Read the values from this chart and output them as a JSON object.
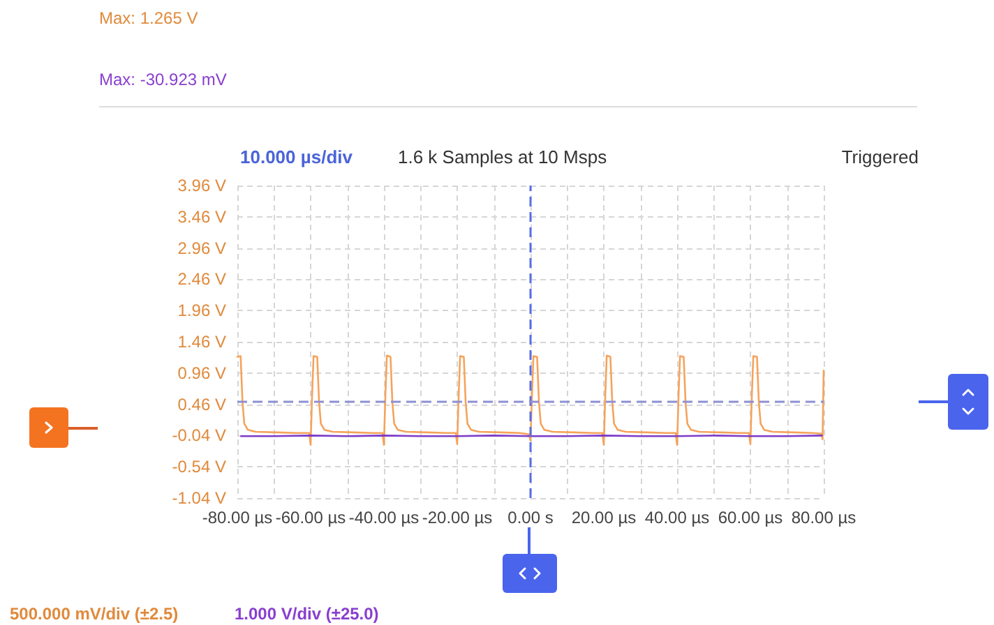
{
  "chart_data": {
    "type": "line",
    "xlim": [
      -80,
      80
    ],
    "xticks": [
      {
        "value": -80,
        "label": "-80.00 µs"
      },
      {
        "value": -70,
        "label": null
      },
      {
        "value": -60,
        "label": "-60.00 µs"
      },
      {
        "value": -50,
        "label": null
      },
      {
        "value": -40,
        "label": "-40.00 µs"
      },
      {
        "value": -30,
        "label": null
      },
      {
        "value": -20,
        "label": "-20.00 µs"
      },
      {
        "value": -10,
        "label": null
      },
      {
        "value": 0,
        "label": "0.00 s"
      },
      {
        "value": 10,
        "label": null
      },
      {
        "value": 20,
        "label": "20.00 µs"
      },
      {
        "value": 30,
        "label": null
      },
      {
        "value": 40,
        "label": "40.00 µs"
      },
      {
        "value": 50,
        "label": null
      },
      {
        "value": 60,
        "label": "60.00 µs"
      },
      {
        "value": 70,
        "label": null
      },
      {
        "value": 80,
        "label": "80.00 µs"
      }
    ],
    "ylim": [
      -1.04,
      3.96
    ],
    "yticks": [
      {
        "value": -1.04,
        "label": "-1.04 V"
      },
      {
        "value": -0.54,
        "label": "-0.54 V"
      },
      {
        "value": -0.04,
        "label": "-0.04 V"
      },
      {
        "value": 0.46,
        "label": "0.46 V"
      },
      {
        "value": 0.96,
        "label": "0.96 V"
      },
      {
        "value": 1.46,
        "label": "1.46 V"
      },
      {
        "value": 1.96,
        "label": "1.96 V"
      },
      {
        "value": 2.46,
        "label": "2.46 V"
      },
      {
        "value": 2.96,
        "label": "2.96 V"
      },
      {
        "value": 3.46,
        "label": "3.46 V"
      },
      {
        "value": 3.96,
        "label": "3.96 V"
      }
    ],
    "grid": true,
    "marker": "none",
    "line_style": "solid",
    "series": [
      {
        "color": "#f5a35c",
        "x": [
          -80,
          -79.1,
          -78.6,
          -78.1,
          -77.1,
          -75,
          -69,
          -64,
          -60.4,
          -60,
          -59.6,
          -59.2,
          -58.2,
          -57.7,
          -57.2,
          -56.2,
          -54,
          -48,
          -43,
          -40.4,
          -40,
          -39.6,
          -39.2,
          -38.2,
          -37.7,
          -37.2,
          -36.2,
          -34,
          -28,
          -23,
          -20.4,
          -20,
          -19.6,
          -19.2,
          -18.2,
          -17.7,
          -17.2,
          -16.2,
          -14,
          -8,
          -3,
          -0.4,
          0,
          0.4,
          0.8,
          1.8,
          2.3,
          2.8,
          3.8,
          6,
          12,
          17,
          19.6,
          20,
          20.4,
          20.8,
          21.8,
          22.3,
          22.8,
          23.8,
          26,
          32,
          37,
          39.6,
          40,
          40.4,
          40.8,
          41.8,
          42.3,
          42.8,
          43.8,
          46,
          52,
          57,
          59.6,
          60,
          60.4,
          60.8,
          61.8,
          62.3,
          62.8,
          63.8,
          66,
          72,
          77,
          79.4,
          79.7,
          80
        ],
        "values": [
          1.22,
          1.23,
          0.5,
          0.15,
          0.05,
          0.02,
          0.01,
          0.0,
          0.0,
          -0.19,
          0.6,
          1.23,
          1.22,
          0.5,
          0.15,
          0.05,
          0.02,
          0.01,
          0.0,
          0.0,
          -0.19,
          0.6,
          1.24,
          1.22,
          0.5,
          0.15,
          0.05,
          0.02,
          0.01,
          0.0,
          0.0,
          -0.18,
          0.6,
          1.23,
          1.22,
          0.5,
          0.15,
          0.05,
          0.02,
          0.01,
          0.0,
          -0.02,
          -0.12,
          0.6,
          1.23,
          1.22,
          0.5,
          0.15,
          0.05,
          0.02,
          0.01,
          0.0,
          0.0,
          -0.19,
          0.6,
          1.24,
          1.22,
          0.5,
          0.15,
          0.05,
          0.02,
          0.01,
          0.0,
          0.0,
          -0.19,
          0.6,
          1.23,
          1.22,
          0.5,
          0.15,
          0.05,
          0.02,
          0.01,
          0.0,
          0.0,
          -0.18,
          0.6,
          1.23,
          1.22,
          0.5,
          0.15,
          0.05,
          0.02,
          0.01,
          0.0,
          -0.01,
          -0.1,
          1.0
        ]
      },
      {
        "color": "#7d3cc8",
        "x": [
          -79,
          -70,
          -60,
          -50,
          -40,
          -30,
          -20,
          -10,
          0,
          10,
          20,
          30,
          40,
          50,
          60,
          70,
          79.5
        ],
        "values": [
          -0.05,
          -0.05,
          -0.04,
          -0.05,
          -0.04,
          -0.05,
          -0.05,
          -0.04,
          -0.05,
          -0.05,
          -0.04,
          -0.05,
          -0.05,
          -0.04,
          -0.05,
          -0.05,
          -0.04
        ]
      }
    ],
    "ref_lines": [
      {
        "axis": "x",
        "value": 0,
        "color": "#5a6ee6",
        "line_style": "dashed"
      },
      {
        "axis": "y",
        "value": 0.51,
        "color": "#8d90d4",
        "line_style": "dashed"
      }
    ],
    "annotations": [
      "Max: 1.265 V",
      "Max: -30.923 mV",
      "10.000 µs/div",
      "1.6 k Samples at 10 Msps",
      "Triggered",
      "500.000 mV/div (±2.5)",
      "1.000 V/div (±25.0)"
    ]
  }
}
